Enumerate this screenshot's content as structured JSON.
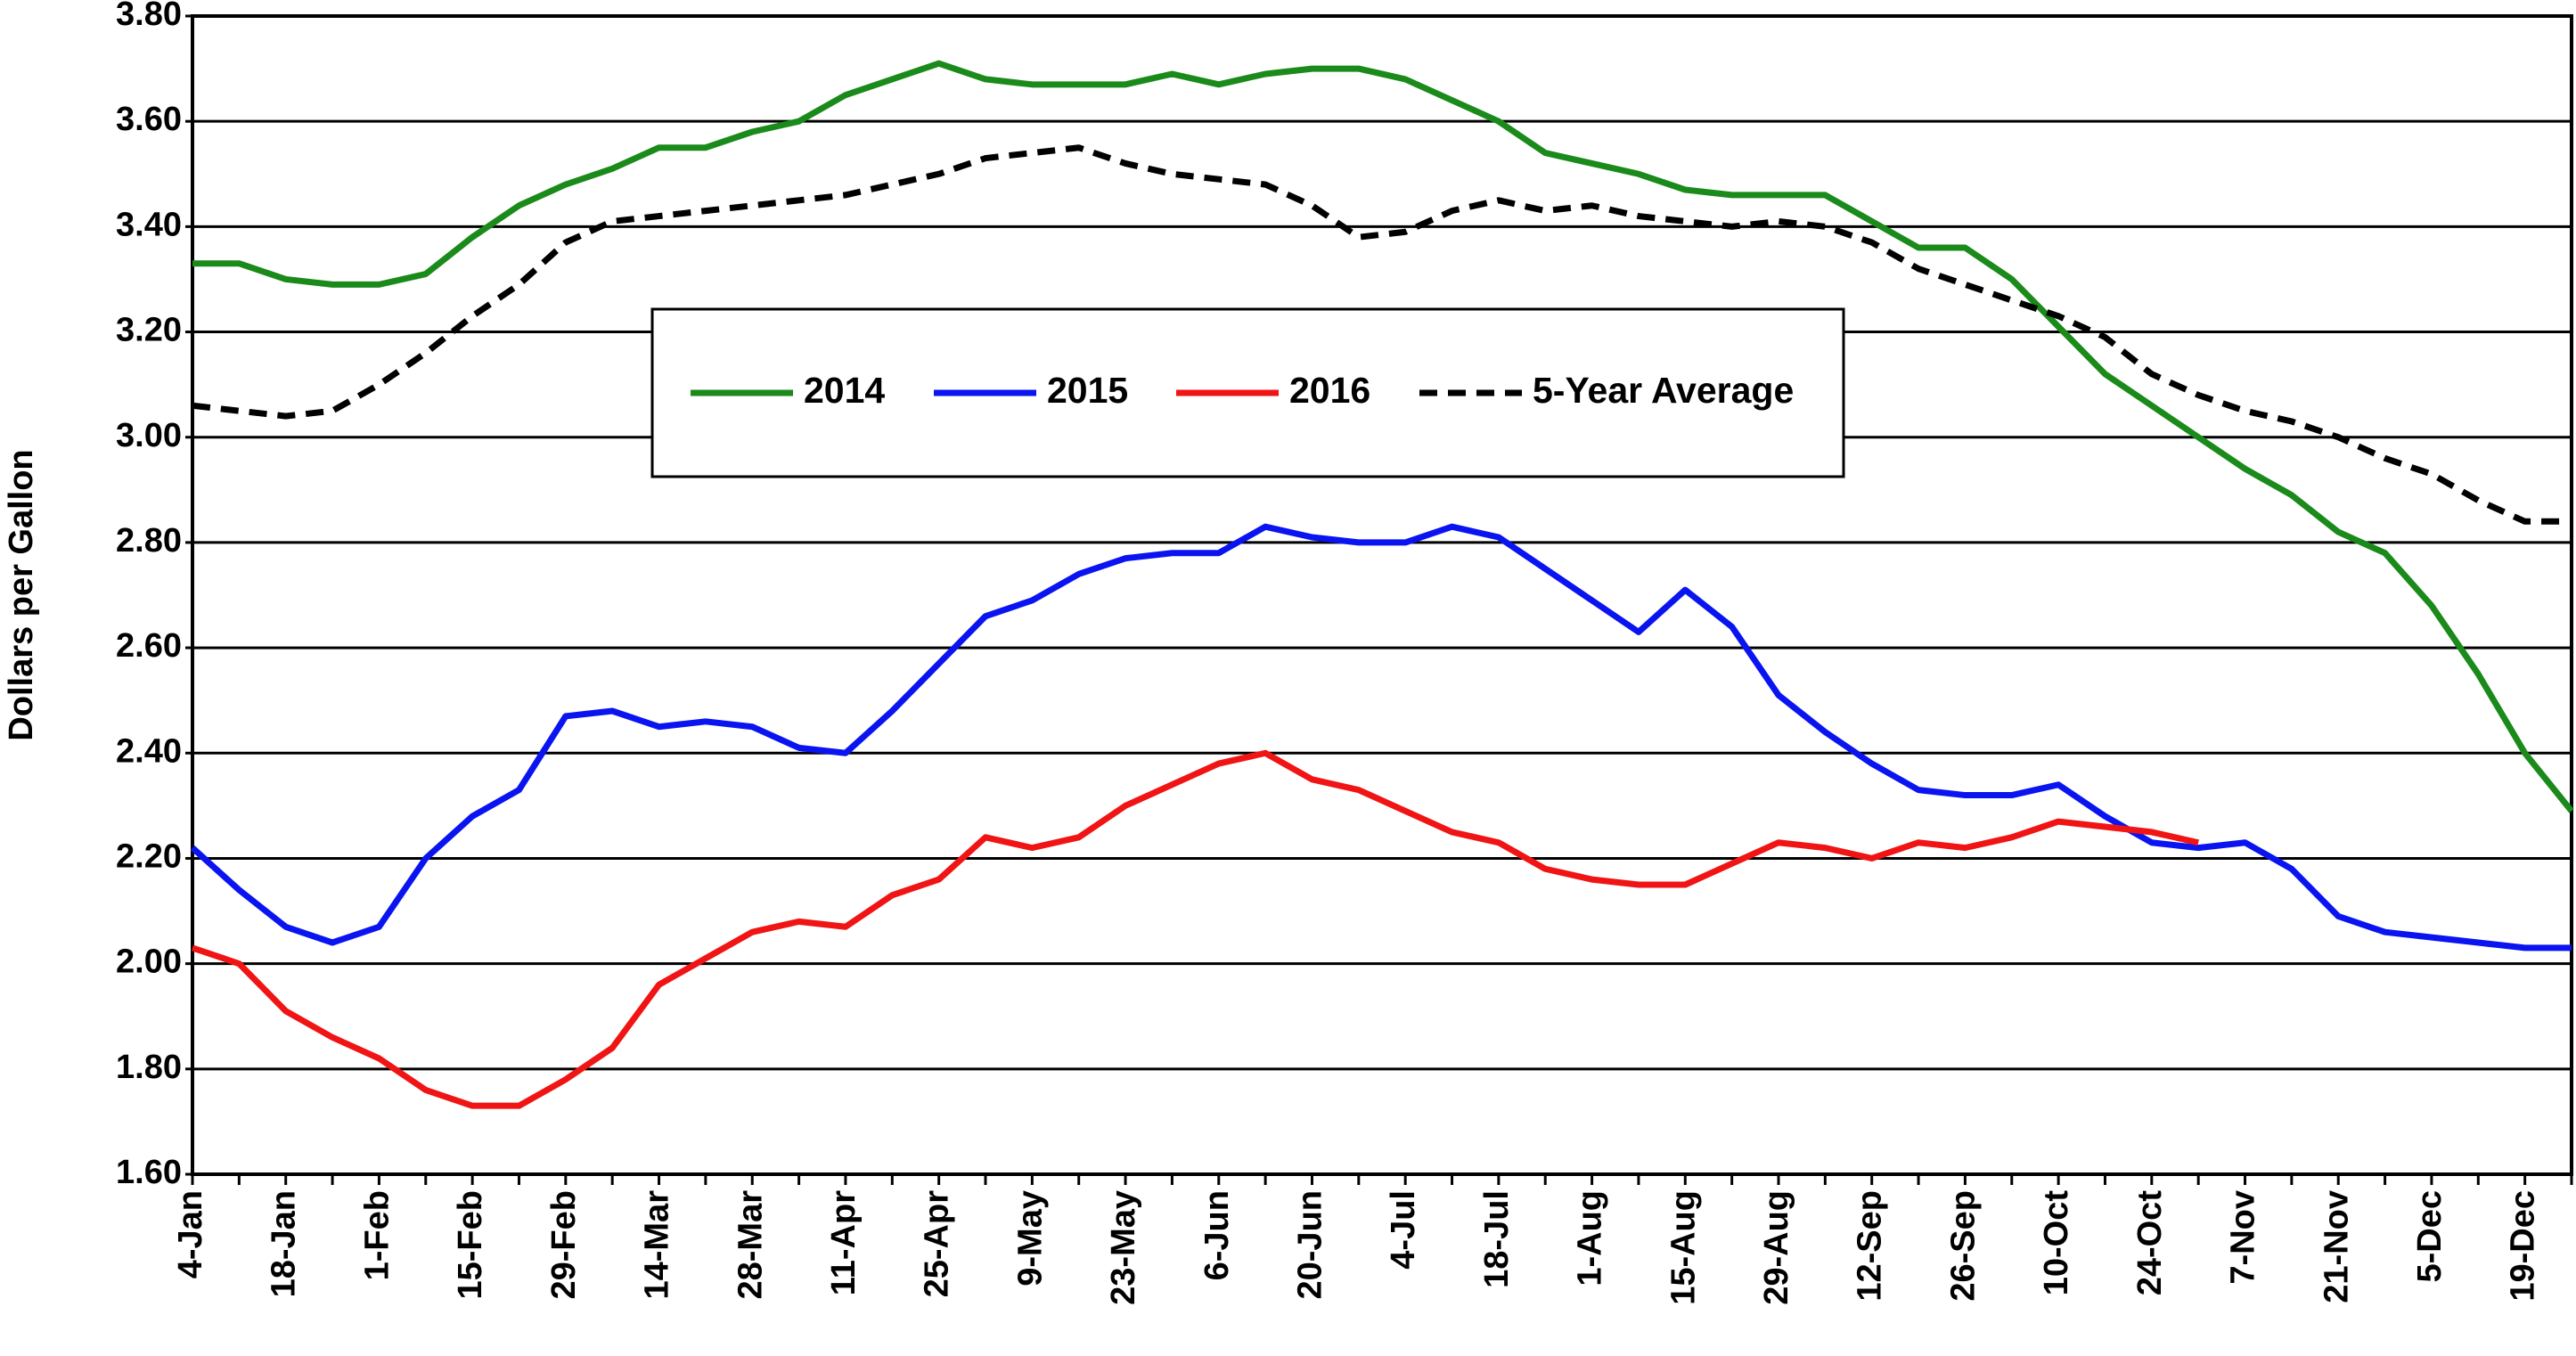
{
  "chart_data": {
    "type": "line",
    "y_label": "Dollars per Gallon",
    "categories": [
      "4-Jan",
      null,
      "18-Jan",
      null,
      "1-Feb",
      null,
      "15-Feb",
      null,
      "29-Feb",
      null,
      "14-Mar",
      null,
      "28-Mar",
      null,
      "11-Apr",
      null,
      "25-Apr",
      null,
      "9-May",
      null,
      "23-May",
      null,
      "6-Jun",
      null,
      "20-Jun",
      null,
      "4-Jul",
      null,
      "18-Jul",
      null,
      "1-Aug",
      null,
      "15-Aug",
      null,
      "29-Aug",
      null,
      "12-Sep",
      null,
      "26-Sep",
      null,
      "10-Oct",
      null,
      "24-Oct",
      null,
      "7-Nov",
      null,
      "21-Nov",
      null,
      "5-Dec",
      null,
      "19-Dec",
      null
    ],
    "series": [
      {
        "name": "2014",
        "color": "#1a8a1a",
        "dashed": false,
        "values": [
          3.33,
          3.33,
          3.3,
          3.29,
          3.29,
          3.31,
          3.38,
          3.44,
          3.48,
          3.51,
          3.55,
          3.55,
          3.58,
          3.6,
          3.65,
          3.68,
          3.71,
          3.68,
          3.67,
          3.67,
          3.67,
          3.69,
          3.67,
          3.69,
          3.7,
          3.7,
          3.68,
          3.64,
          3.6,
          3.54,
          3.52,
          3.5,
          3.47,
          3.46,
          3.46,
          3.46,
          3.41,
          3.36,
          3.36,
          3.3,
          3.21,
          3.12,
          3.06,
          3.0,
          2.94,
          2.89,
          2.82,
          2.78,
          2.68,
          2.55,
          2.4,
          2.29
        ]
      },
      {
        "name": "2015",
        "color": "#0a14f0",
        "dashed": false,
        "values": [
          2.22,
          2.14,
          2.07,
          2.04,
          2.07,
          2.2,
          2.28,
          2.33,
          2.47,
          2.48,
          2.45,
          2.46,
          2.45,
          2.41,
          2.4,
          2.48,
          2.57,
          2.66,
          2.69,
          2.74,
          2.77,
          2.78,
          2.78,
          2.83,
          2.81,
          2.8,
          2.8,
          2.83,
          2.81,
          2.75,
          2.69,
          2.63,
          2.71,
          2.64,
          2.51,
          2.44,
          2.38,
          2.33,
          2.32,
          2.32,
          2.34,
          2.28,
          2.23,
          2.22,
          2.23,
          2.18,
          2.09,
          2.06,
          2.05,
          2.04,
          2.03,
          2.03
        ]
      },
      {
        "name": "2016",
        "color": "#f01414",
        "dashed": false,
        "values": [
          2.03,
          2.0,
          1.91,
          1.86,
          1.82,
          1.76,
          1.73,
          1.73,
          1.78,
          1.84,
          1.96,
          2.01,
          2.06,
          2.08,
          2.07,
          2.13,
          2.16,
          2.24,
          2.22,
          2.24,
          2.3,
          2.34,
          2.38,
          2.4,
          2.35,
          2.33,
          2.29,
          2.25,
          2.23,
          2.18,
          2.16,
          2.15,
          2.15,
          2.19,
          2.23,
          2.22,
          2.2,
          2.23,
          2.22,
          2.24,
          2.27,
          2.26,
          2.25,
          2.23,
          null,
          null,
          null,
          null,
          null,
          null,
          null,
          null
        ]
      },
      {
        "name": "5-Year Average",
        "color": "#000000",
        "dashed": true,
        "values": [
          3.06,
          3.05,
          3.04,
          3.05,
          3.1,
          3.16,
          3.23,
          3.29,
          3.37,
          3.41,
          3.42,
          3.43,
          3.44,
          3.45,
          3.46,
          3.48,
          3.5,
          3.53,
          3.54,
          3.55,
          3.52,
          3.5,
          3.49,
          3.48,
          3.44,
          3.38,
          3.39,
          3.43,
          3.45,
          3.43,
          3.44,
          3.42,
          3.41,
          3.4,
          3.41,
          3.4,
          3.37,
          3.32,
          3.29,
          3.26,
          3.23,
          3.19,
          3.12,
          3.08,
          3.05,
          3.03,
          3.0,
          2.96,
          2.93,
          2.88,
          2.84,
          2.84
        ]
      }
    ],
    "ylim": [
      1.6,
      3.8
    ],
    "yticks": [
      {
        "value": 1.6,
        "label": "1.60"
      },
      {
        "value": 1.8,
        "label": "1.80"
      },
      {
        "value": 2.0,
        "label": "2.00"
      },
      {
        "value": 2.2,
        "label": "2.20"
      },
      {
        "value": 2.4,
        "label": "2.40"
      },
      {
        "value": 2.6,
        "label": "2.60"
      },
      {
        "value": 2.8,
        "label": "2.80"
      },
      {
        "value": 3.0,
        "label": "3.00"
      },
      {
        "value": 3.2,
        "label": "3.20"
      },
      {
        "value": 3.4,
        "label": "3.40"
      },
      {
        "value": 3.6,
        "label": "3.60"
      },
      {
        "value": 3.8,
        "label": "3.80"
      }
    ],
    "grid": true
  }
}
